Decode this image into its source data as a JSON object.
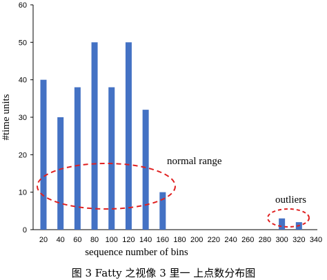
{
  "chart_data": {
    "type": "bar",
    "title": "",
    "xlabel": "sequence number of bins",
    "ylabel": "#time units",
    "ylim": [
      0,
      60
    ],
    "yticks": [
      0,
      10,
      20,
      30,
      40,
      50,
      60
    ],
    "xticks": [
      20,
      40,
      60,
      80,
      100,
      120,
      140,
      160,
      180,
      200,
      220,
      240,
      260,
      280,
      300,
      320,
      340
    ],
    "grid": false,
    "bar_color": "#4472c4",
    "bars": [
      {
        "x": 20,
        "y": 40
      },
      {
        "x": 40,
        "y": 30
      },
      {
        "x": 60,
        "y": 38
      },
      {
        "x": 80,
        "y": 50
      },
      {
        "x": 100,
        "y": 38
      },
      {
        "x": 120,
        "y": 50
      },
      {
        "x": 140,
        "y": 32
      },
      {
        "x": 160,
        "y": 10
      },
      {
        "x": 300,
        "y": 3
      },
      {
        "x": 320,
        "y": 2
      }
    ],
    "annotations": [
      {
        "text": "normal range",
        "style": "dashed-ellipse",
        "color": "#e02020"
      },
      {
        "text": "outliers",
        "style": "dashed-ellipse",
        "color": "#e02020"
      }
    ],
    "caption": "图 3 Fatty 之视像 3 里一 上点数分布图"
  }
}
